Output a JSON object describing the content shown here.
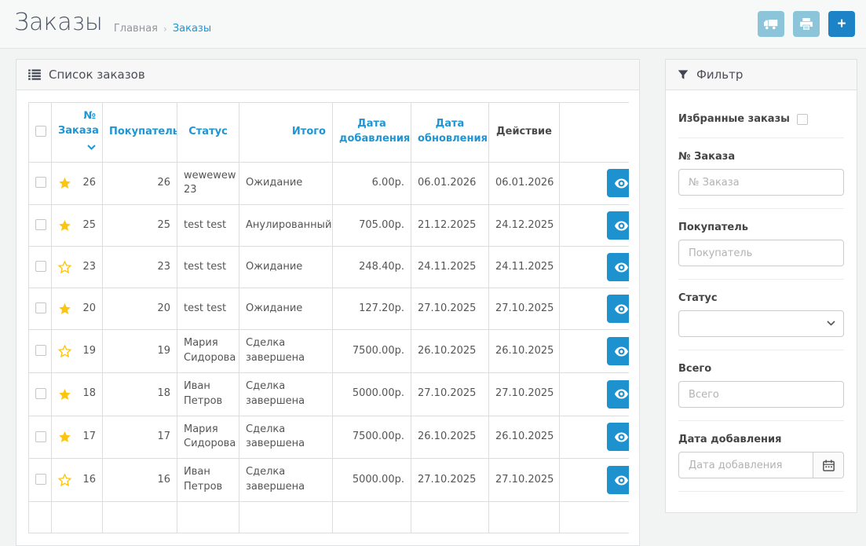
{
  "page": {
    "title": "Заказы",
    "breadcrumb": {
      "separator": "›",
      "items": [
        {
          "label": "Главная"
        },
        {
          "label": "Заказы"
        }
      ]
    },
    "header_buttons": [
      {
        "name": "shipping-list-button",
        "icon": "truck-icon",
        "style": "info"
      },
      {
        "name": "print-invoice-button",
        "icon": "printer-icon",
        "style": "info"
      },
      {
        "name": "add-order-button",
        "icon": "plus-icon",
        "style": "primary",
        "glyph": "+"
      }
    ]
  },
  "orders_panel": {
    "title": "Список заказов",
    "icon": "list-icon",
    "table": {
      "headers": [
        "",
        "№ Заказа",
        "Покупатель",
        "Статус",
        "Итого",
        "Дата добавления",
        "Дата обновления",
        "Действие",
        ""
      ],
      "sorted_column": "№ Заказа",
      "sort_direction": "desc",
      "rows": [
        {
          "favorite": true,
          "order_no": "26",
          "customer_no": "26",
          "customer": "wewewew 23",
          "status": "Ожидание",
          "total": "6.00р.",
          "date_added": "06.01.2026",
          "date_updated": "06.01.2026"
        },
        {
          "favorite": true,
          "order_no": "25",
          "customer_no": "25",
          "customer": "test test",
          "status": "Анулированный",
          "total": "705.00р.",
          "date_added": "21.12.2025",
          "date_updated": "24.12.2025"
        },
        {
          "favorite": false,
          "order_no": "23",
          "customer_no": "23",
          "customer": "test test",
          "status": "Ожидание",
          "total": "248.40р.",
          "date_added": "24.11.2025",
          "date_updated": "24.11.2025"
        },
        {
          "favorite": true,
          "order_no": "20",
          "customer_no": "20",
          "customer": "test test",
          "status": "Ожидание",
          "total": "127.20р.",
          "date_added": "27.10.2025",
          "date_updated": "27.10.2025"
        },
        {
          "favorite": false,
          "order_no": "19",
          "customer_no": "19",
          "customer": "Мария Сидорова",
          "status": "Сделка завершена",
          "total": "7500.00р.",
          "date_added": "26.10.2025",
          "date_updated": "26.10.2025"
        },
        {
          "favorite": true,
          "order_no": "18",
          "customer_no": "18",
          "customer": "Иван Петров",
          "status": "Сделка завершена",
          "total": "5000.00р.",
          "date_added": "27.10.2025",
          "date_updated": "27.10.2025"
        },
        {
          "favorite": true,
          "order_no": "17",
          "customer_no": "17",
          "customer": "Мария Сидорова",
          "status": "Сделка завершена",
          "total": "7500.00р.",
          "date_added": "26.10.2025",
          "date_updated": "26.10.2025"
        },
        {
          "favorite": false,
          "order_no": "16",
          "customer_no": "16",
          "customer": "Иван Петров",
          "status": "Сделка завершена",
          "total": "5000.00р.",
          "date_added": "27.10.2025",
          "date_updated": "27.10.2025"
        }
      ]
    }
  },
  "filter_panel": {
    "title": "Фильтр",
    "icon": "funnel-icon",
    "groups": [
      {
        "type": "checkbox",
        "label": "Избранные заказы",
        "checked": false
      },
      {
        "type": "text",
        "label": "№ Заказа",
        "placeholder": "№ Заказа"
      },
      {
        "type": "text",
        "label": "Покупатель",
        "placeholder": "Покупатель"
      },
      {
        "type": "select",
        "label": "Статус",
        "value": ""
      },
      {
        "type": "text",
        "label": "Всего",
        "placeholder": "Всего"
      },
      {
        "type": "date",
        "label": "Дата добавления",
        "placeholder": "Дата добавления",
        "addon_icon": "calendar-icon"
      }
    ]
  },
  "icons": {
    "truck-icon": "truck shape",
    "printer-icon": "printer shape",
    "plus-icon": "+",
    "list-icon": "≣",
    "funnel-icon": "filter funnel",
    "eye-icon": "eye",
    "star-filled-icon": "★",
    "star-outline-icon": "☆",
    "calendar-icon": "▦",
    "chevron-down-icon": "⌄"
  },
  "colors": {
    "primary": "#1e91cf",
    "add_button": "#1c84c6",
    "info_button": "#8cc5da",
    "link": "#2095d2",
    "star": "#fdc50b",
    "page_bg": "#f2f3f3",
    "panel_border": "#dfe0e2"
  }
}
